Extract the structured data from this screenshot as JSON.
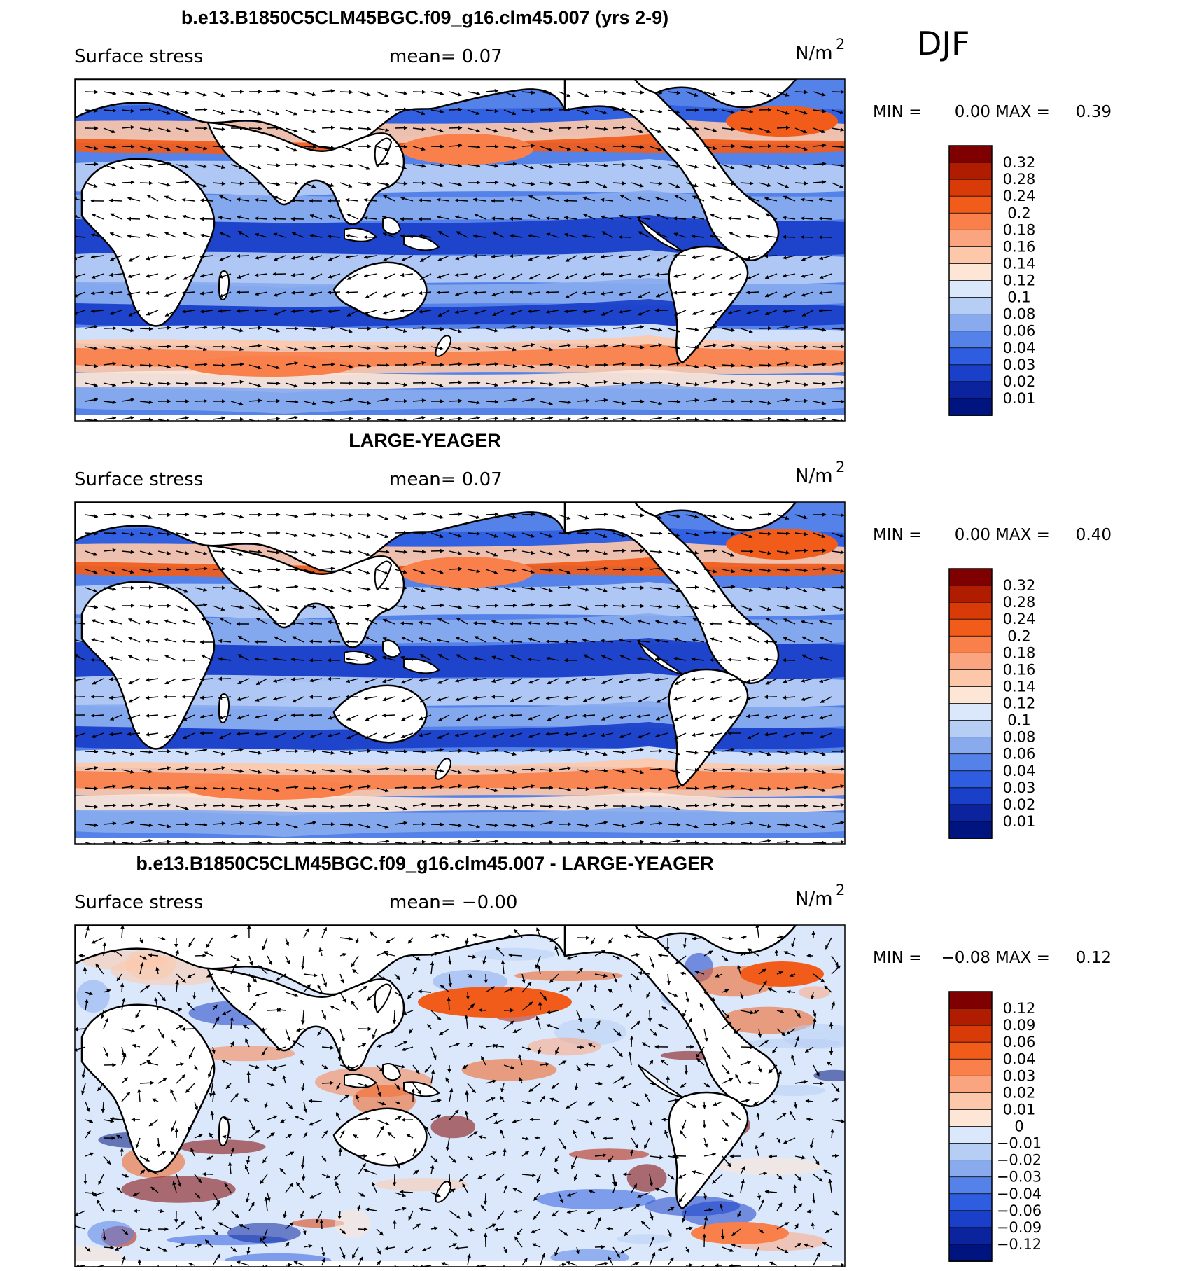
{
  "season_label": "DJF",
  "panels": [
    {
      "title": "b.e13.B1850C5CLM45BGC.f09_g16.clm45.007 (yrs 2-9)",
      "left_label": "Surface stress",
      "mean_text": "mean=   0.07",
      "units_text": "N/m",
      "units_sup": "2",
      "minmax": {
        "min_label": "MIN =",
        "min_value": "0.00",
        "max_label": "MAX =",
        "max_value": "0.39"
      },
      "colorbar": {
        "labels": [
          "0.32",
          "0.28",
          "0.24",
          "0.2",
          "0.18",
          "0.16",
          "0.14",
          "0.12",
          "0.1",
          "0.08",
          "0.06",
          "0.04",
          "0.03",
          "0.02",
          "0.01"
        ],
        "colors": [
          "#7f0000",
          "#b01c00",
          "#d83a08",
          "#f25c1a",
          "#f9804a",
          "#fba580",
          "#fdc8aa",
          "#fee6d6",
          "#dbe8fb",
          "#b6cdf4",
          "#89abee",
          "#5582e8",
          "#2f5de0",
          "#1a3fc8",
          "#0b249e",
          "#001480"
        ]
      },
      "map_style": "abs"
    },
    {
      "title": "LARGE-YEAGER",
      "left_label": "Surface stress",
      "mean_text": "mean=   0.07",
      "units_text": "N/m",
      "units_sup": "2",
      "minmax": {
        "min_label": "MIN =",
        "min_value": "0.00",
        "max_label": "MAX =",
        "max_value": "0.40"
      },
      "colorbar": {
        "labels": [
          "0.32",
          "0.28",
          "0.24",
          "0.2",
          "0.18",
          "0.16",
          "0.14",
          "0.12",
          "0.1",
          "0.08",
          "0.06",
          "0.04",
          "0.03",
          "0.02",
          "0.01"
        ],
        "colors": [
          "#7f0000",
          "#b01c00",
          "#d83a08",
          "#f25c1a",
          "#f9804a",
          "#fba580",
          "#fdc8aa",
          "#fee6d6",
          "#dbe8fb",
          "#b6cdf4",
          "#89abee",
          "#5582e8",
          "#2f5de0",
          "#1a3fc8",
          "#0b249e",
          "#001480"
        ]
      },
      "map_style": "abs"
    },
    {
      "title": "b.e13.B1850C5CLM45BGC.f09_g16.clm45.007 - LARGE-YEAGER",
      "left_label": "Surface stress",
      "mean_text": "mean=  −0.00",
      "units_text": "N/m",
      "units_sup": "2",
      "minmax": {
        "min_label": "MIN =",
        "min_value": "−0.08",
        "max_label": "MAX =",
        "max_value": "0.12"
      },
      "colorbar": {
        "labels": [
          "0.12",
          "0.09",
          "0.06",
          "0.04",
          "0.03",
          "0.02",
          "0.01",
          "0",
          "−0.01",
          "−0.02",
          "−0.03",
          "−0.04",
          "−0.06",
          "−0.09",
          "−0.12"
        ],
        "colors": [
          "#7f0000",
          "#b01c00",
          "#d83a08",
          "#f25c1a",
          "#f9804a",
          "#fba580",
          "#fdc8aa",
          "#fee6d6",
          "#dbe8fb",
          "#b6cdf4",
          "#89abee",
          "#5582e8",
          "#2f5de0",
          "#1a3fc8",
          "#0b249e",
          "#001480"
        ]
      },
      "map_style": "diff"
    }
  ]
}
